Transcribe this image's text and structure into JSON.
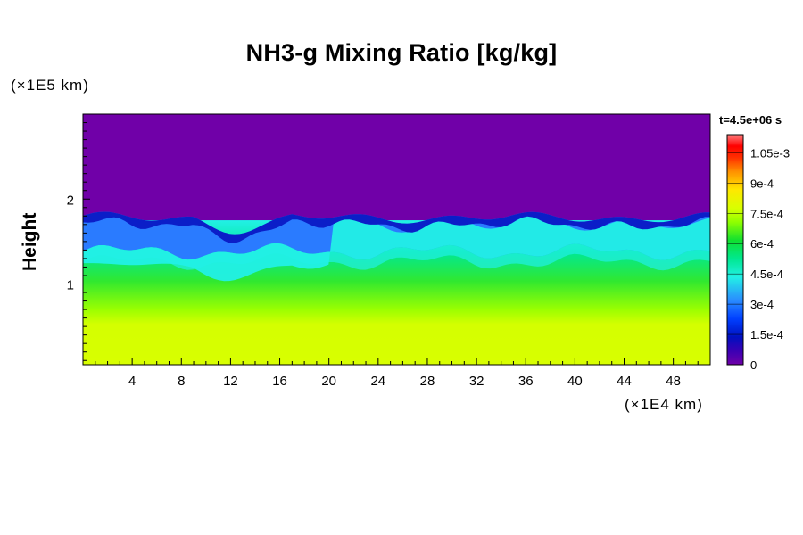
{
  "chart_data": {
    "type": "heatmap",
    "title": "NH3-g Mixing Ratio [kg/kg]",
    "ylabel": "Height",
    "y_unit": "(×1E5 km)",
    "x_unit": "(×1E4 km)",
    "time_label": "t=4.5e+06 s",
    "xlim": [
      0,
      51
    ],
    "ylim": [
      0.05,
      3.0
    ],
    "x_ticks": [
      4,
      8,
      12,
      16,
      20,
      24,
      28,
      32,
      36,
      40,
      44,
      48
    ],
    "y_ticks": [
      1,
      2
    ],
    "colorbar": {
      "ticks": [
        "0",
        "1.5e-4",
        "3e-4",
        "4.5e-4",
        "6e-4",
        "7.5e-4",
        "9e-4",
        "1.05e-3"
      ],
      "levels": [
        0,
        0.00015,
        0.0003,
        0.00045,
        0.0006,
        0.00075,
        0.0009,
        0.00105
      ],
      "max": 0.00114
    },
    "bands": [
      {
        "region": "top",
        "y_from": 1.75,
        "y_to": 3.0,
        "value": 0.0
      },
      {
        "region": "cloud-edge",
        "y_from": 1.6,
        "y_to": 1.85,
        "value": 0.00012
      },
      {
        "region": "mixing-layer",
        "y_from": 1.35,
        "y_to": 1.75,
        "value": 0.0003
      },
      {
        "region": "transition",
        "y_from": 1.0,
        "y_to": 1.35,
        "value": 0.0005
      },
      {
        "region": "lower",
        "y_from": 0.7,
        "y_to": 1.0,
        "value": 0.00065
      },
      {
        "region": "bottom",
        "y_from": 0.05,
        "y_to": 0.7,
        "value": 0.00078
      }
    ],
    "colors": {
      "top": "#7000a8",
      "edge": "#0b1ec8",
      "blue": "#2a7bff",
      "cyan": "#22f0e6",
      "green": "#00e060",
      "yellowgreen": "#99ff00",
      "yellow": "#d8ff00"
    }
  }
}
